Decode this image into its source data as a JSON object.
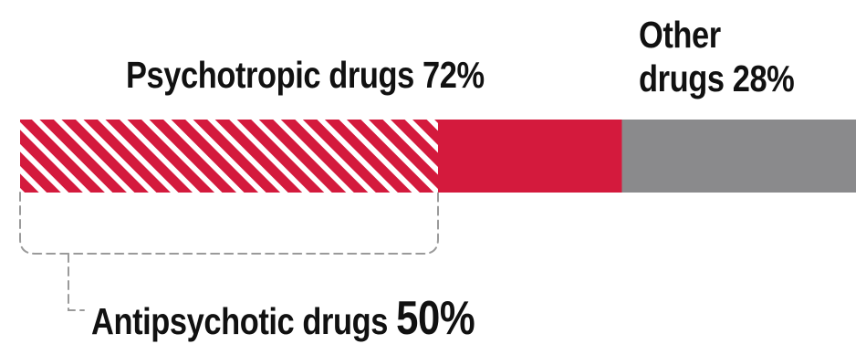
{
  "chart_data": {
    "type": "bar",
    "title": "",
    "unit": "%",
    "series": [
      {
        "name": "Psychotropic drugs",
        "values": [
          72
        ],
        "color": "#d41a3d"
      },
      {
        "name": "Other drugs",
        "values": [
          28
        ],
        "color": "#8a8a8c"
      }
    ],
    "subset": {
      "name": "Antipsychotic drugs",
      "value": 50,
      "of": "Psychotropic drugs",
      "pattern": "diagonal-hatch"
    },
    "total": 100
  },
  "labels": {
    "psychotropic": "Psychotropic drugs 72%",
    "other_line1": "Other",
    "other_line2": "drugs 28%",
    "anti_text": "Antipsychotic drugs",
    "anti_value": "50%"
  },
  "colors": {
    "psychotropic": "#d41a3d",
    "other": "#8a8a8c",
    "hatch_stripe": "#ffffff",
    "bracket": "#9a9a9a",
    "text": "#111111"
  }
}
